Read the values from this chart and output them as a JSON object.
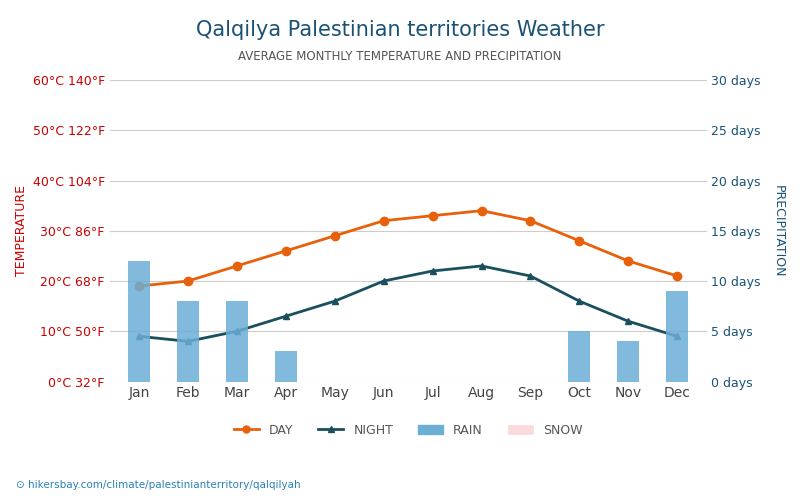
{
  "title": "Qalqilya Palestinian territories Weather",
  "subtitle": "AVERAGE MONTHLY TEMPERATURE AND PRECIPITATION",
  "months": [
    "Jan",
    "Feb",
    "Mar",
    "Apr",
    "May",
    "Jun",
    "Jul",
    "Aug",
    "Sep",
    "Oct",
    "Nov",
    "Dec"
  ],
  "day_temps": [
    19,
    20,
    23,
    26,
    29,
    32,
    33,
    34,
    32,
    28,
    24,
    21
  ],
  "night_temps": [
    9,
    8,
    10,
    13,
    16,
    20,
    22,
    23,
    21,
    16,
    12,
    9
  ],
  "rain_days": [
    12,
    8,
    8,
    3,
    0,
    0,
    0,
    0,
    0,
    5,
    4,
    9
  ],
  "snow_days": [
    0,
    0,
    0,
    0,
    0,
    0,
    0,
    0,
    0,
    0,
    0,
    0
  ],
  "title_color": "#1a5276",
  "subtitle_color": "#555555",
  "day_line_color": "#e8600a",
  "night_line_color": "#1a4f5e",
  "rain_bar_color": "#6baed6",
  "snow_bar_color": "#fadadd",
  "left_axis_color": "#cc0000",
  "right_axis_color": "#1a5276",
  "ylabel_left": "TEMPERATURE",
  "ylabel_right": "PRECIPITATION",
  "temp_ticks_c": [
    0,
    10,
    20,
    30,
    40,
    50,
    60
  ],
  "temp_ticks_f": [
    32,
    50,
    68,
    86,
    104,
    122,
    140
  ],
  "temp_tick_labels_left": [
    "0°C 32°F",
    "10°C 50°F",
    "20°C 68°F",
    "30°C 86°F",
    "40°C 104°F",
    "50°C 122°F",
    "60°C 140°F"
  ],
  "precip_ticks": [
    0,
    5,
    10,
    15,
    20,
    25,
    30
  ],
  "precip_tick_labels": [
    "0 days",
    "5 days",
    "10 days",
    "15 days",
    "20 days",
    "25 days",
    "30 days"
  ],
  "watermark": "hikersbay.com/climate/palestinianterritory/qalqilyah",
  "background_color": "#ffffff",
  "grid_color": "#cccccc",
  "ylim_temp": [
    0,
    60
  ],
  "ylim_precip": [
    0,
    30
  ]
}
